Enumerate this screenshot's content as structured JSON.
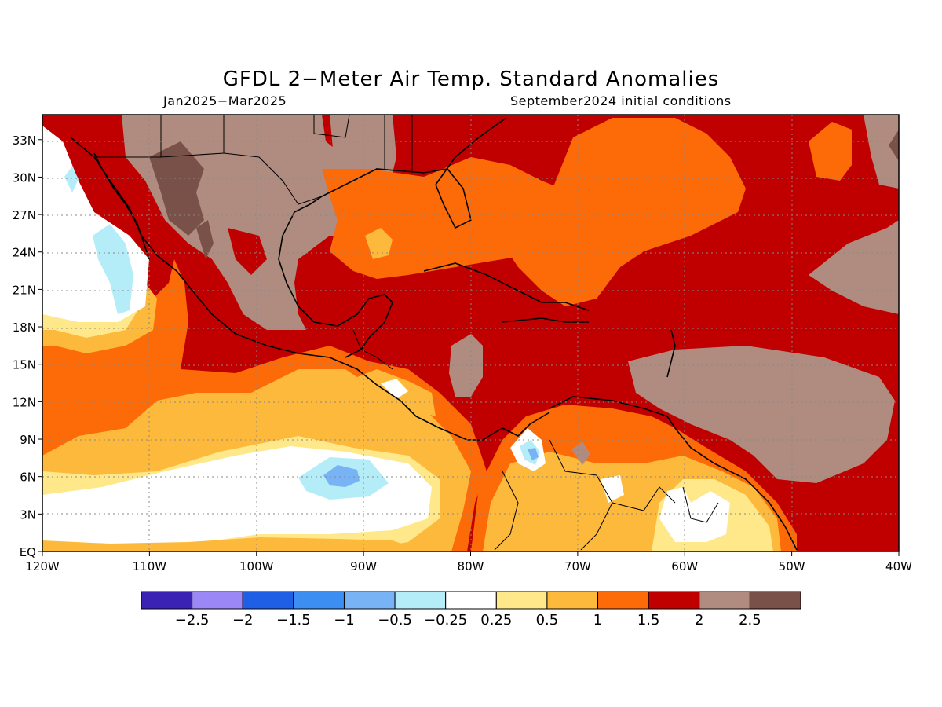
{
  "map": {
    "title": "GFDL 2−Meter Air Temp. Standard Anomalies",
    "period": "Jan2025−Mar2025",
    "initial_conditions": "September2024 initial conditions",
    "lon_labels": [
      "120W",
      "110W",
      "100W",
      "90W",
      "80W",
      "70W",
      "60W",
      "50W",
      "40W"
    ],
    "lat_labels": [
      "EQ",
      "3N",
      "6N",
      "9N",
      "12N",
      "15N",
      "18N",
      "21N",
      "24N",
      "27N",
      "30N",
      "33N"
    ]
  },
  "colorbar": {
    "labels": [
      "−2.5",
      "−2",
      "−1.5",
      "−1",
      "−0.5",
      "−0.25",
      "0.25",
      "0.5",
      "1",
      "1.5",
      "2",
      "2.5"
    ],
    "colors": [
      "#3a22b4",
      "#9b87f5",
      "#1f5fe6",
      "#3c8ef2",
      "#78b4f5",
      "#b4edf8",
      "#ffffff",
      "#fee88a",
      "#fdb93b",
      "#fd6a08",
      "#c00000",
      "#af8c7f",
      "#7a5148"
    ]
  },
  "colors": {
    "white": "#ffffff",
    "light_yellow": "#fee88a",
    "yellow_orange": "#fdb93b",
    "orange": "#fd6a08",
    "red": "#c00000",
    "brown": "#af8c7f",
    "dark_brown": "#7a5148",
    "cyan": "#b4edf8",
    "blue": "#78b4f5"
  }
}
